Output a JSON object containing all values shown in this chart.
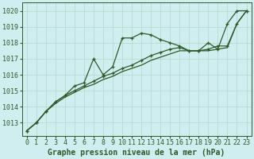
{
  "title": "Graphe pression niveau de la mer (hPa)",
  "bg_color": "#d0eef0",
  "grid_color": "#b0d8c8",
  "line_color": "#2d5a27",
  "xlim": [
    -0.5,
    23.5
  ],
  "ylim": [
    1012.2,
    1020.5
  ],
  "yticks": [
    1013,
    1014,
    1015,
    1016,
    1017,
    1018,
    1019,
    1020
  ],
  "xticks": [
    0,
    1,
    2,
    3,
    4,
    5,
    6,
    7,
    8,
    9,
    10,
    11,
    12,
    13,
    14,
    15,
    16,
    17,
    18,
    19,
    20,
    21,
    22,
    23
  ],
  "series1": [
    1012.5,
    1013.0,
    1013.7,
    1014.3,
    1014.7,
    1015.3,
    1015.5,
    1017.0,
    1016.0,
    1016.5,
    1018.3,
    1018.3,
    1018.6,
    1018.5,
    1018.2,
    1018.0,
    1017.8,
    1017.5,
    1017.5,
    1018.0,
    1017.6,
    1019.2,
    1020.0,
    1020.0
  ],
  "series2": [
    1012.5,
    1013.0,
    1013.7,
    1014.3,
    1014.7,
    1015.0,
    1015.3,
    1015.6,
    1015.9,
    1016.1,
    1016.4,
    1016.6,
    1016.9,
    1017.2,
    1017.4,
    1017.6,
    1017.7,
    1017.5,
    1017.5,
    1017.6,
    1017.8,
    1017.8,
    1019.2,
    1020.0
  ],
  "series3": [
    1012.5,
    1013.0,
    1013.7,
    1014.2,
    1014.6,
    1014.9,
    1015.2,
    1015.4,
    1015.7,
    1015.9,
    1016.2,
    1016.4,
    1016.6,
    1016.9,
    1017.1,
    1017.3,
    1017.5,
    1017.5,
    1017.5,
    1017.5,
    1017.6,
    1017.7,
    1019.2,
    1020.0
  ],
  "tick_fontsize": 6,
  "label_color": "#2d5a27",
  "xlabel_fontsize": 7
}
